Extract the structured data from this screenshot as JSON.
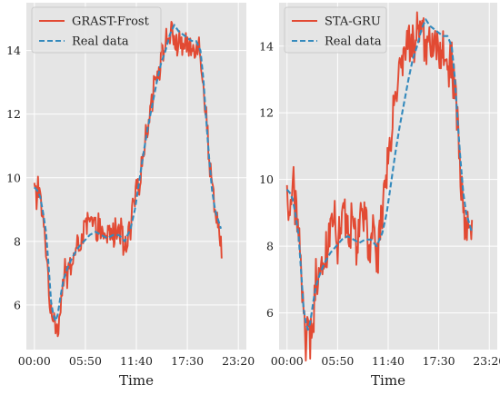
{
  "figure": {
    "xlabel": "Time",
    "xticks": [
      "00:00",
      "05:50",
      "11:40",
      "17:30",
      "23:20"
    ],
    "yticks": [
      "6",
      "8",
      "10",
      "12",
      "14"
    ]
  },
  "colors": {
    "model": "#E24A33",
    "real": "#348ABD",
    "panel_bg": "#E5E5E5",
    "grid": "#ffffff"
  },
  "chart_data": [
    {
      "type": "line",
      "title": "",
      "xlabel": "Time",
      "ylabel": "",
      "x_unit": "minutes from 00:00 (5-min steps)",
      "xticks": [
        "00:00",
        "05:50",
        "11:40",
        "17:30",
        "23:20"
      ],
      "ylim": [
        4.6,
        15.5
      ],
      "grid": true,
      "legend": "top-left",
      "series": [
        {
          "name": "GRAST-Frost",
          "color": "#E24A33",
          "style": "solid",
          "keypoints": [
            [
              0,
              9.6
            ],
            [
              15,
              9.3
            ],
            [
              25,
              9.9
            ],
            [
              35,
              9.5
            ],
            [
              50,
              9.0
            ],
            [
              70,
              8.2
            ],
            [
              85,
              7.6
            ],
            [
              105,
              6.2
            ],
            [
              120,
              5.4
            ],
            [
              135,
              5.9
            ],
            [
              150,
              5.2
            ],
            [
              170,
              5.5
            ],
            [
              190,
              6.6
            ],
            [
              210,
              6.9
            ],
            [
              240,
              7.1
            ],
            [
              270,
              7.5
            ],
            [
              300,
              7.8
            ],
            [
              330,
              8.2
            ],
            [
              360,
              8.5
            ],
            [
              390,
              8.6
            ],
            [
              420,
              8.4
            ],
            [
              450,
              8.4
            ],
            [
              470,
              8.1
            ],
            [
              490,
              8.0
            ],
            [
              510,
              8.3
            ],
            [
              530,
              8.3
            ],
            [
              560,
              8.2
            ],
            [
              580,
              8.6
            ],
            [
              600,
              8.1
            ],
            [
              620,
              7.6
            ],
            [
              640,
              7.9
            ],
            [
              660,
              8.3
            ],
            [
              680,
              9.0
            ],
            [
              700,
              9.6
            ],
            [
              720,
              9.9
            ],
            [
              740,
              10.5
            ],
            [
              760,
              11.2
            ],
            [
              780,
              11.7
            ],
            [
              800,
              12.3
            ],
            [
              820,
              12.9
            ],
            [
              840,
              13.3
            ],
            [
              860,
              13.6
            ],
            [
              880,
              13.9
            ],
            [
              900,
              14.2
            ],
            [
              920,
              14.4
            ],
            [
              940,
              14.6
            ],
            [
              960,
              14.3
            ],
            [
              980,
              14.2
            ],
            [
              1000,
              14.3
            ],
            [
              1020,
              14.1
            ],
            [
              1040,
              14.2
            ],
            [
              1060,
              14.1
            ],
            [
              1080,
              14.0
            ],
            [
              1100,
              14.3
            ],
            [
              1120,
              14.2
            ],
            [
              1140,
              13.9
            ],
            [
              1160,
              13.0
            ],
            [
              1180,
              12.0
            ],
            [
              1200,
              10.5
            ],
            [
              1220,
              9.8
            ],
            [
              1240,
              9.1
            ],
            [
              1260,
              8.6
            ],
            [
              1275,
              8.2
            ],
            [
              1285,
              7.7
            ]
          ]
        },
        {
          "name": "Real data",
          "color": "#348ABD",
          "style": "dashed",
          "keypoints": [
            [
              0,
              9.7
            ],
            [
              20,
              9.6
            ],
            [
              40,
              9.4
            ],
            [
              60,
              8.9
            ],
            [
              80,
              8.3
            ],
            [
              100,
              7.1
            ],
            [
              115,
              6.1
            ],
            [
              130,
              5.7
            ],
            [
              145,
              5.5
            ],
            [
              160,
              5.7
            ],
            [
              180,
              6.3
            ],
            [
              200,
              6.8
            ],
            [
              230,
              7.2
            ],
            [
              260,
              7.5
            ],
            [
              300,
              7.8
            ],
            [
              340,
              8.0
            ],
            [
              380,
              8.2
            ],
            [
              420,
              8.3
            ],
            [
              460,
              8.2
            ],
            [
              500,
              8.1
            ],
            [
              540,
              8.2
            ],
            [
              580,
              8.2
            ],
            [
              620,
              8.0
            ],
            [
              660,
              8.4
            ],
            [
              690,
              9.0
            ],
            [
              720,
              9.9
            ],
            [
              750,
              10.8
            ],
            [
              780,
              11.6
            ],
            [
              810,
              12.3
            ],
            [
              840,
              13.0
            ],
            [
              870,
              13.6
            ],
            [
              900,
              14.0
            ],
            [
              930,
              14.5
            ],
            [
              960,
              14.8
            ],
            [
              990,
              14.6
            ],
            [
              1020,
              14.5
            ],
            [
              1050,
              14.4
            ],
            [
              1080,
              14.3
            ],
            [
              1110,
              14.3
            ],
            [
              1140,
              14.0
            ],
            [
              1160,
              13.1
            ],
            [
              1180,
              11.8
            ],
            [
              1200,
              10.6
            ],
            [
              1220,
              9.6
            ],
            [
              1240,
              9.0
            ],
            [
              1260,
              8.7
            ],
            [
              1280,
              8.4
            ]
          ]
        }
      ]
    },
    {
      "type": "line",
      "title": "",
      "xlabel": "Time",
      "ylabel": "",
      "x_unit": "minutes from 00:00 (5-min steps)",
      "xticks": [
        "00:00",
        "05:50",
        "11:40",
        "17:30",
        "23:20"
      ],
      "ylim": [
        4.9,
        15.3
      ],
      "grid": true,
      "legend": "top-left",
      "series": [
        {
          "name": "STA-GRU",
          "color": "#E24A33",
          "style": "solid",
          "keypoints": [
            [
              0,
              9.4
            ],
            [
              20,
              9.0
            ],
            [
              40,
              10.0
            ],
            [
              60,
              9.2
            ],
            [
              80,
              8.4
            ],
            [
              100,
              7.0
            ],
            [
              115,
              5.9
            ],
            [
              130,
              5.4
            ],
            [
              150,
              5.8
            ],
            [
              165,
              5.3
            ],
            [
              185,
              6.2
            ],
            [
              205,
              7.0
            ],
            [
              230,
              7.5
            ],
            [
              260,
              7.9
            ],
            [
              290,
              8.2
            ],
            [
              320,
              8.9
            ],
            [
              350,
              8.3
            ],
            [
              380,
              8.7
            ],
            [
              400,
              9.2
            ],
            [
              420,
              8.4
            ],
            [
              450,
              8.9
            ],
            [
              480,
              8.0
            ],
            [
              510,
              8.6
            ],
            [
              540,
              9.1
            ],
            [
              560,
              8.1
            ],
            [
              580,
              7.6
            ],
            [
              600,
              8.9
            ],
            [
              620,
              7.5
            ],
            [
              640,
              8.4
            ],
            [
              660,
              9.0
            ],
            [
              680,
              9.8
            ],
            [
              700,
              10.6
            ],
            [
              720,
              11.2
            ],
            [
              740,
              11.9
            ],
            [
              760,
              12.5
            ],
            [
              780,
              13.2
            ],
            [
              800,
              13.6
            ],
            [
              820,
              13.8
            ],
            [
              840,
              14.1
            ],
            [
              860,
              14.3
            ],
            [
              880,
              13.9
            ],
            [
              900,
              14.5
            ],
            [
              920,
              14.3
            ],
            [
              940,
              14.6
            ],
            [
              960,
              14.0
            ],
            [
              980,
              14.3
            ],
            [
              1000,
              13.9
            ],
            [
              1020,
              14.5
            ],
            [
              1040,
              14.2
            ],
            [
              1060,
              13.7
            ],
            [
              1080,
              14.1
            ],
            [
              1100,
              13.8
            ],
            [
              1120,
              13.2
            ],
            [
              1140,
              13.6
            ],
            [
              1160,
              12.9
            ],
            [
              1180,
              11.6
            ],
            [
              1200,
              10.0
            ],
            [
              1220,
              9.3
            ],
            [
              1240,
              8.8
            ],
            [
              1260,
              8.1
            ],
            [
              1280,
              8.5
            ]
          ]
        },
        {
          "name": "Real data",
          "color": "#348ABD",
          "style": "dashed",
          "keypoints": [
            [
              0,
              9.7
            ],
            [
              20,
              9.6
            ],
            [
              40,
              9.4
            ],
            [
              60,
              8.9
            ],
            [
              80,
              8.3
            ],
            [
              100,
              7.1
            ],
            [
              115,
              6.1
            ],
            [
              130,
              5.7
            ],
            [
              145,
              5.5
            ],
            [
              160,
              5.7
            ],
            [
              180,
              6.3
            ],
            [
              200,
              6.8
            ],
            [
              230,
              7.2
            ],
            [
              260,
              7.5
            ],
            [
              300,
              7.8
            ],
            [
              340,
              8.0
            ],
            [
              380,
              8.2
            ],
            [
              420,
              8.3
            ],
            [
              460,
              8.2
            ],
            [
              500,
              8.1
            ],
            [
              540,
              8.2
            ],
            [
              580,
              8.2
            ],
            [
              620,
              8.0
            ],
            [
              660,
              8.4
            ],
            [
              690,
              9.0
            ],
            [
              720,
              9.9
            ],
            [
              750,
              10.8
            ],
            [
              780,
              11.6
            ],
            [
              810,
              12.3
            ],
            [
              840,
              13.0
            ],
            [
              870,
              13.6
            ],
            [
              900,
              14.0
            ],
            [
              930,
              14.5
            ],
            [
              960,
              14.8
            ],
            [
              990,
              14.6
            ],
            [
              1020,
              14.5
            ],
            [
              1050,
              14.4
            ],
            [
              1080,
              14.3
            ],
            [
              1110,
              14.3
            ],
            [
              1140,
              14.0
            ],
            [
              1160,
              13.1
            ],
            [
              1180,
              11.8
            ],
            [
              1200,
              10.6
            ],
            [
              1220,
              9.6
            ],
            [
              1240,
              9.0
            ],
            [
              1260,
              8.7
            ],
            [
              1280,
              8.4
            ]
          ]
        }
      ]
    }
  ]
}
